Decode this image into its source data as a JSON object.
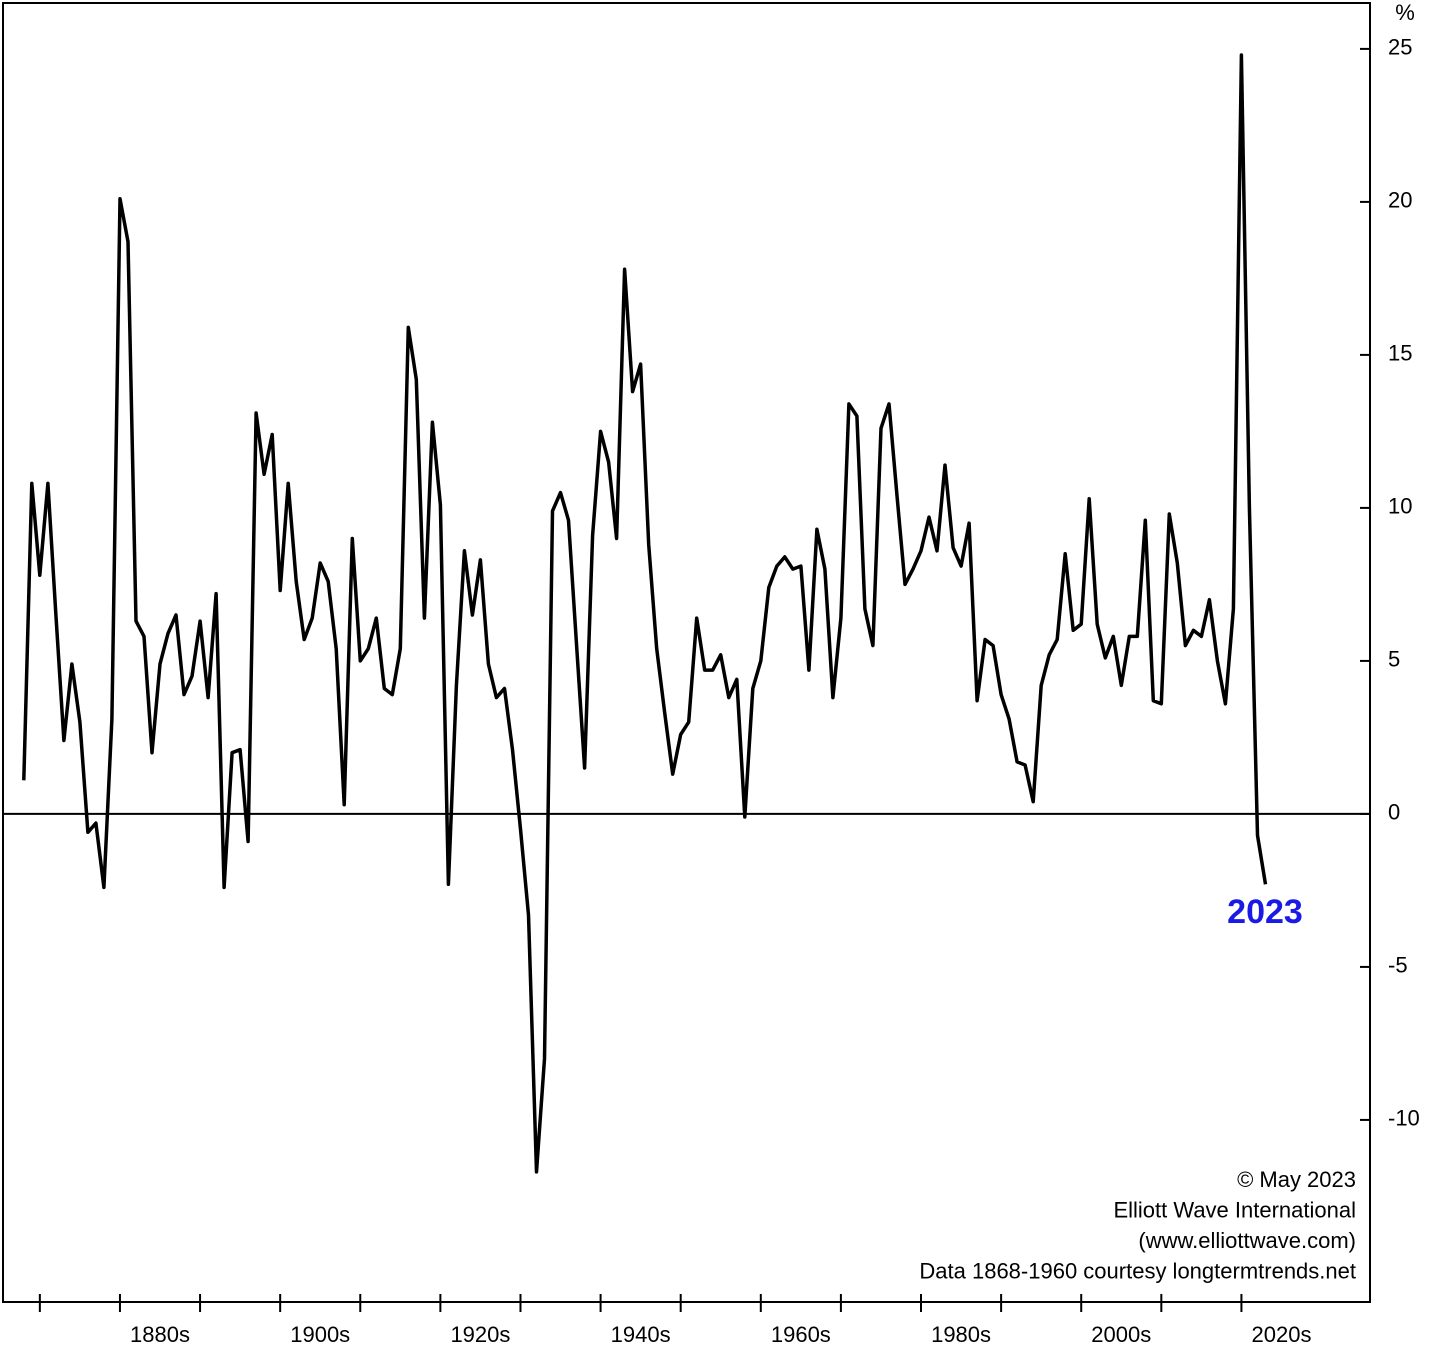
{
  "chart_data": {
    "type": "line",
    "y_unit": "%",
    "x": [
      1868,
      1869,
      1870,
      1871,
      1872,
      1873,
      1874,
      1875,
      1876,
      1877,
      1878,
      1879,
      1880,
      1881,
      1882,
      1883,
      1884,
      1885,
      1886,
      1887,
      1888,
      1889,
      1890,
      1891,
      1892,
      1893,
      1894,
      1895,
      1896,
      1897,
      1898,
      1899,
      1900,
      1901,
      1902,
      1903,
      1904,
      1905,
      1906,
      1907,
      1908,
      1909,
      1910,
      1911,
      1912,
      1913,
      1914,
      1915,
      1916,
      1917,
      1918,
      1919,
      1920,
      1921,
      1922,
      1923,
      1924,
      1925,
      1926,
      1927,
      1928,
      1929,
      1930,
      1931,
      1932,
      1933,
      1934,
      1935,
      1936,
      1937,
      1938,
      1939,
      1940,
      1941,
      1942,
      1943,
      1944,
      1945,
      1946,
      1947,
      1948,
      1949,
      1950,
      1951,
      1952,
      1953,
      1954,
      1955,
      1956,
      1957,
      1958,
      1959,
      1960,
      1961,
      1962,
      1963,
      1964,
      1965,
      1966,
      1967,
      1968,
      1969,
      1970,
      1971,
      1972,
      1973,
      1974,
      1975,
      1976,
      1977,
      1978,
      1979,
      1980,
      1981,
      1982,
      1983,
      1984,
      1985,
      1986,
      1987,
      1988,
      1989,
      1990,
      1991,
      1992,
      1993,
      1994,
      1995,
      1996,
      1997,
      1998,
      1999,
      2000,
      2001,
      2002,
      2003,
      2004,
      2005,
      2006,
      2007,
      2008,
      2009,
      2010,
      2011,
      2012,
      2013,
      2014,
      2015,
      2016,
      2017,
      2018,
      2019,
      2020,
      2021,
      2022,
      2023
    ],
    "series": [
      {
        "color": "#000000",
        "values": [
          1.1,
          10.8,
          7.8,
          10.8,
          6.5,
          2.4,
          4.9,
          3.0,
          -0.6,
          -0.3,
          -2.4,
          3.1,
          20.1,
          18.7,
          6.3,
          5.8,
          2.0,
          4.9,
          5.9,
          6.5,
          3.9,
          4.5,
          6.3,
          3.8,
          7.2,
          -2.4,
          2.0,
          2.1,
          -0.9,
          13.1,
          11.1,
          12.4,
          7.3,
          10.8,
          7.6,
          5.7,
          6.4,
          8.2,
          7.6,
          5.4,
          0.3,
          9.0,
          5.0,
          5.4,
          6.4,
          4.1,
          3.9,
          5.4,
          15.9,
          14.2,
          6.4,
          12.8,
          10.1,
          -2.3,
          4.2,
          8.6,
          6.5,
          8.3,
          4.9,
          3.8,
          4.1,
          2.1,
          -0.5,
          -3.3,
          -11.7,
          -8.0,
          9.9,
          10.5,
          9.6,
          5.5,
          1.5,
          9.1,
          12.5,
          11.5,
          9.0,
          17.8,
          13.8,
          14.7,
          8.8,
          5.4,
          3.3,
          1.3,
          2.6,
          3.0,
          6.4,
          4.7,
          4.7,
          5.2,
          3.8,
          4.4,
          -0.1,
          4.1,
          5.0,
          7.4,
          8.1,
          8.4,
          8.0,
          8.1,
          4.7,
          9.3,
          8.0,
          3.8,
          6.4,
          13.4,
          13.0,
          6.7,
          5.5,
          12.6,
          13.4,
          10.4,
          7.5,
          8.0,
          8.6,
          9.7,
          8.6,
          11.4,
          8.7,
          8.1,
          9.5,
          3.7,
          5.7,
          5.5,
          3.9,
          3.1,
          1.7,
          1.6,
          0.4,
          4.2,
          5.2,
          5.7,
          8.5,
          6.0,
          6.2,
          10.3,
          6.2,
          5.1,
          5.8,
          4.2,
          5.8,
          5.8,
          9.6,
          3.7,
          3.6,
          9.8,
          8.2,
          5.5,
          6.0,
          5.8,
          7.0,
          5.0,
          3.6,
          6.7,
          24.8,
          10.0,
          -0.7,
          -2.3
        ]
      }
    ],
    "xlim": [
      1865.4,
      2036.05
    ],
    "xticks": [
      1870,
      1880,
      1890,
      1900,
      1910,
      1920,
      1930,
      1940,
      1950,
      1960,
      1970,
      1980,
      1990,
      2000,
      2010,
      2020
    ],
    "xtick_labels": [
      {
        "value": 1880,
        "label": "1880s"
      },
      {
        "value": 1900,
        "label": "1900s"
      },
      {
        "value": 1920,
        "label": "1920s"
      },
      {
        "value": 1940,
        "label": "1940s"
      },
      {
        "value": 1960,
        "label": "1960s"
      },
      {
        "value": 1980,
        "label": "1980s"
      },
      {
        "value": 2000,
        "label": "2000s"
      },
      {
        "value": 2020,
        "label": "2020s"
      }
    ],
    "ylim": [
      -15.95,
      26.5
    ],
    "yticks": [
      25,
      20,
      15,
      10,
      5,
      0,
      -5,
      -10
    ],
    "zero_line": true,
    "annotations": [
      {
        "text": "2023",
        "color": "#1a1ae6"
      },
      {
        "text": "© May 2023"
      },
      {
        "text": "Elliott Wave International"
      },
      {
        "text": "(www.elliottwave.com)"
      },
      {
        "text": "Data 1868-1960 courtesy longtermtrends.net"
      }
    ]
  }
}
